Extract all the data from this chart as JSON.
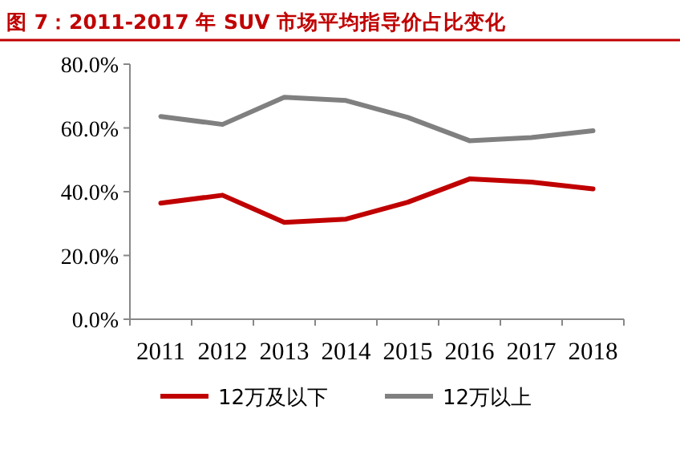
{
  "chart_data": {
    "type": "line",
    "title": "图 7：2011-2017 年 SUV 市场平均指导价占比变化",
    "categories": [
      "2011",
      "2012",
      "2013",
      "2014",
      "2015",
      "2016",
      "2017",
      "2018"
    ],
    "series": [
      {
        "name": "12万及以下",
        "color": "#c00000",
        "values": [
          36.4,
          38.9,
          30.4,
          31.4,
          36.7,
          44.0,
          43.0,
          40.9
        ]
      },
      {
        "name": "12万以上",
        "color": "#808080",
        "values": [
          63.6,
          61.1,
          69.6,
          68.6,
          63.3,
          56.0,
          57.0,
          59.1
        ]
      }
    ],
    "ylim": [
      0,
      80
    ],
    "yticks": [
      {
        "value": 0,
        "label": "0.0%"
      },
      {
        "value": 20,
        "label": "20.0%"
      },
      {
        "value": 40,
        "label": "40.0%"
      },
      {
        "value": 60,
        "label": "60.0%"
      },
      {
        "value": 80,
        "label": "80.0%"
      }
    ],
    "grid": false,
    "legend": "bottom",
    "marker": "none",
    "line_style": "solid"
  }
}
